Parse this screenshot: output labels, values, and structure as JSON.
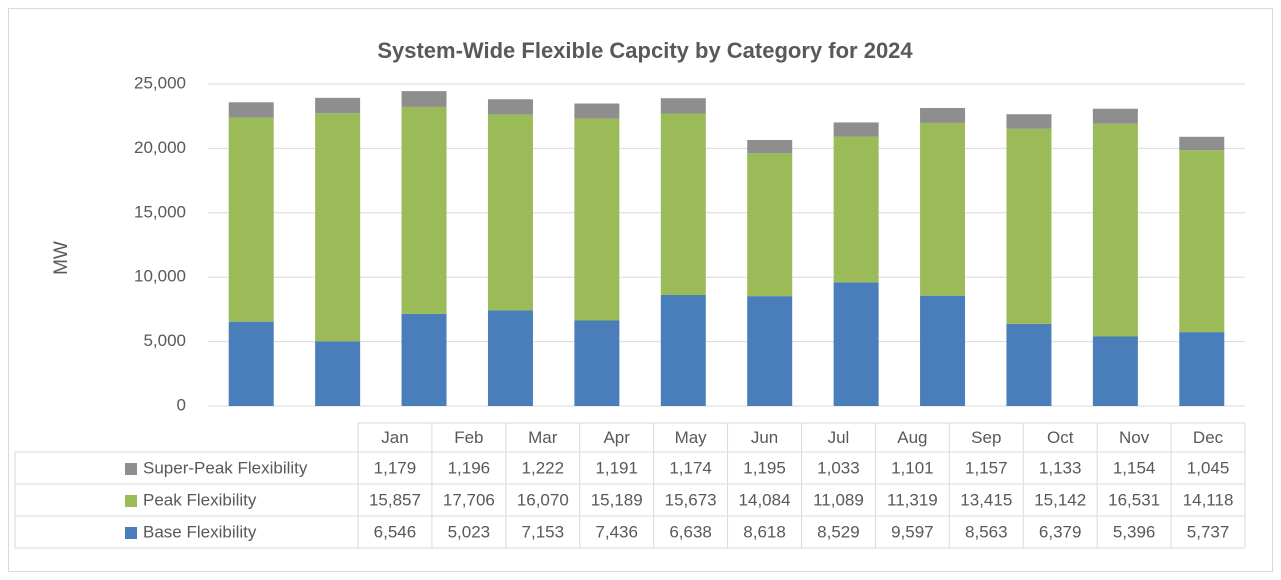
{
  "chart_data": {
    "type": "bar",
    "stacked": true,
    "title": "System-Wide Flexible Capcity by Category for 2024",
    "y_label": "MW",
    "categories": [
      "Jan",
      "Feb",
      "Mar",
      "Apr",
      "May",
      "Jun",
      "Jul",
      "Aug",
      "Sep",
      "Oct",
      "Nov",
      "Dec"
    ],
    "series": [
      {
        "name": "Base Flexibility",
        "color": "#4a7ebb",
        "values": [
          6546,
          5023,
          7153,
          7436,
          6638,
          8618,
          8529,
          9597,
          8563,
          6379,
          5396,
          5737
        ],
        "value_labels": [
          "6,546",
          "5,023",
          "7,153",
          "7,436",
          "6,638",
          "8,618",
          "8,529",
          "9,597",
          "8,563",
          "6,379",
          "5,396",
          "5,737"
        ]
      },
      {
        "name": "Peak Flexibility",
        "color": "#9bbb59",
        "values": [
          15857,
          17706,
          16070,
          15189,
          15673,
          14084,
          11089,
          11319,
          13415,
          15142,
          16531,
          14118
        ],
        "value_labels": [
          "15,857",
          "17,706",
          "16,070",
          "15,189",
          "15,673",
          "14,084",
          "11,089",
          "11,319",
          "13,415",
          "15,142",
          "16,531",
          "14,118"
        ]
      },
      {
        "name": "Super-Peak Flexibility",
        "color": "#8e8e8e",
        "values": [
          1179,
          1196,
          1222,
          1191,
          1174,
          1195,
          1033,
          1101,
          1157,
          1133,
          1154,
          1045
        ],
        "value_labels": [
          "1,179",
          "1,196",
          "1,222",
          "1,191",
          "1,174",
          "1,195",
          "1,033",
          "1,101",
          "1,157",
          "1,133",
          "1,154",
          "1,045"
        ]
      }
    ],
    "ylim": [
      0,
      25000
    ],
    "yticks": [
      0,
      {
        "value": 5000,
        "label": "5,000"
      },
      {
        "value": 10000,
        "label": "10,000"
      },
      {
        "value": 15000,
        "label": "15,000"
      },
      {
        "value": 20000,
        "label": "20,000"
      },
      {
        "value": 25000,
        "label": "25,000"
      }
    ],
    "grid": true,
    "legend": "table"
  }
}
